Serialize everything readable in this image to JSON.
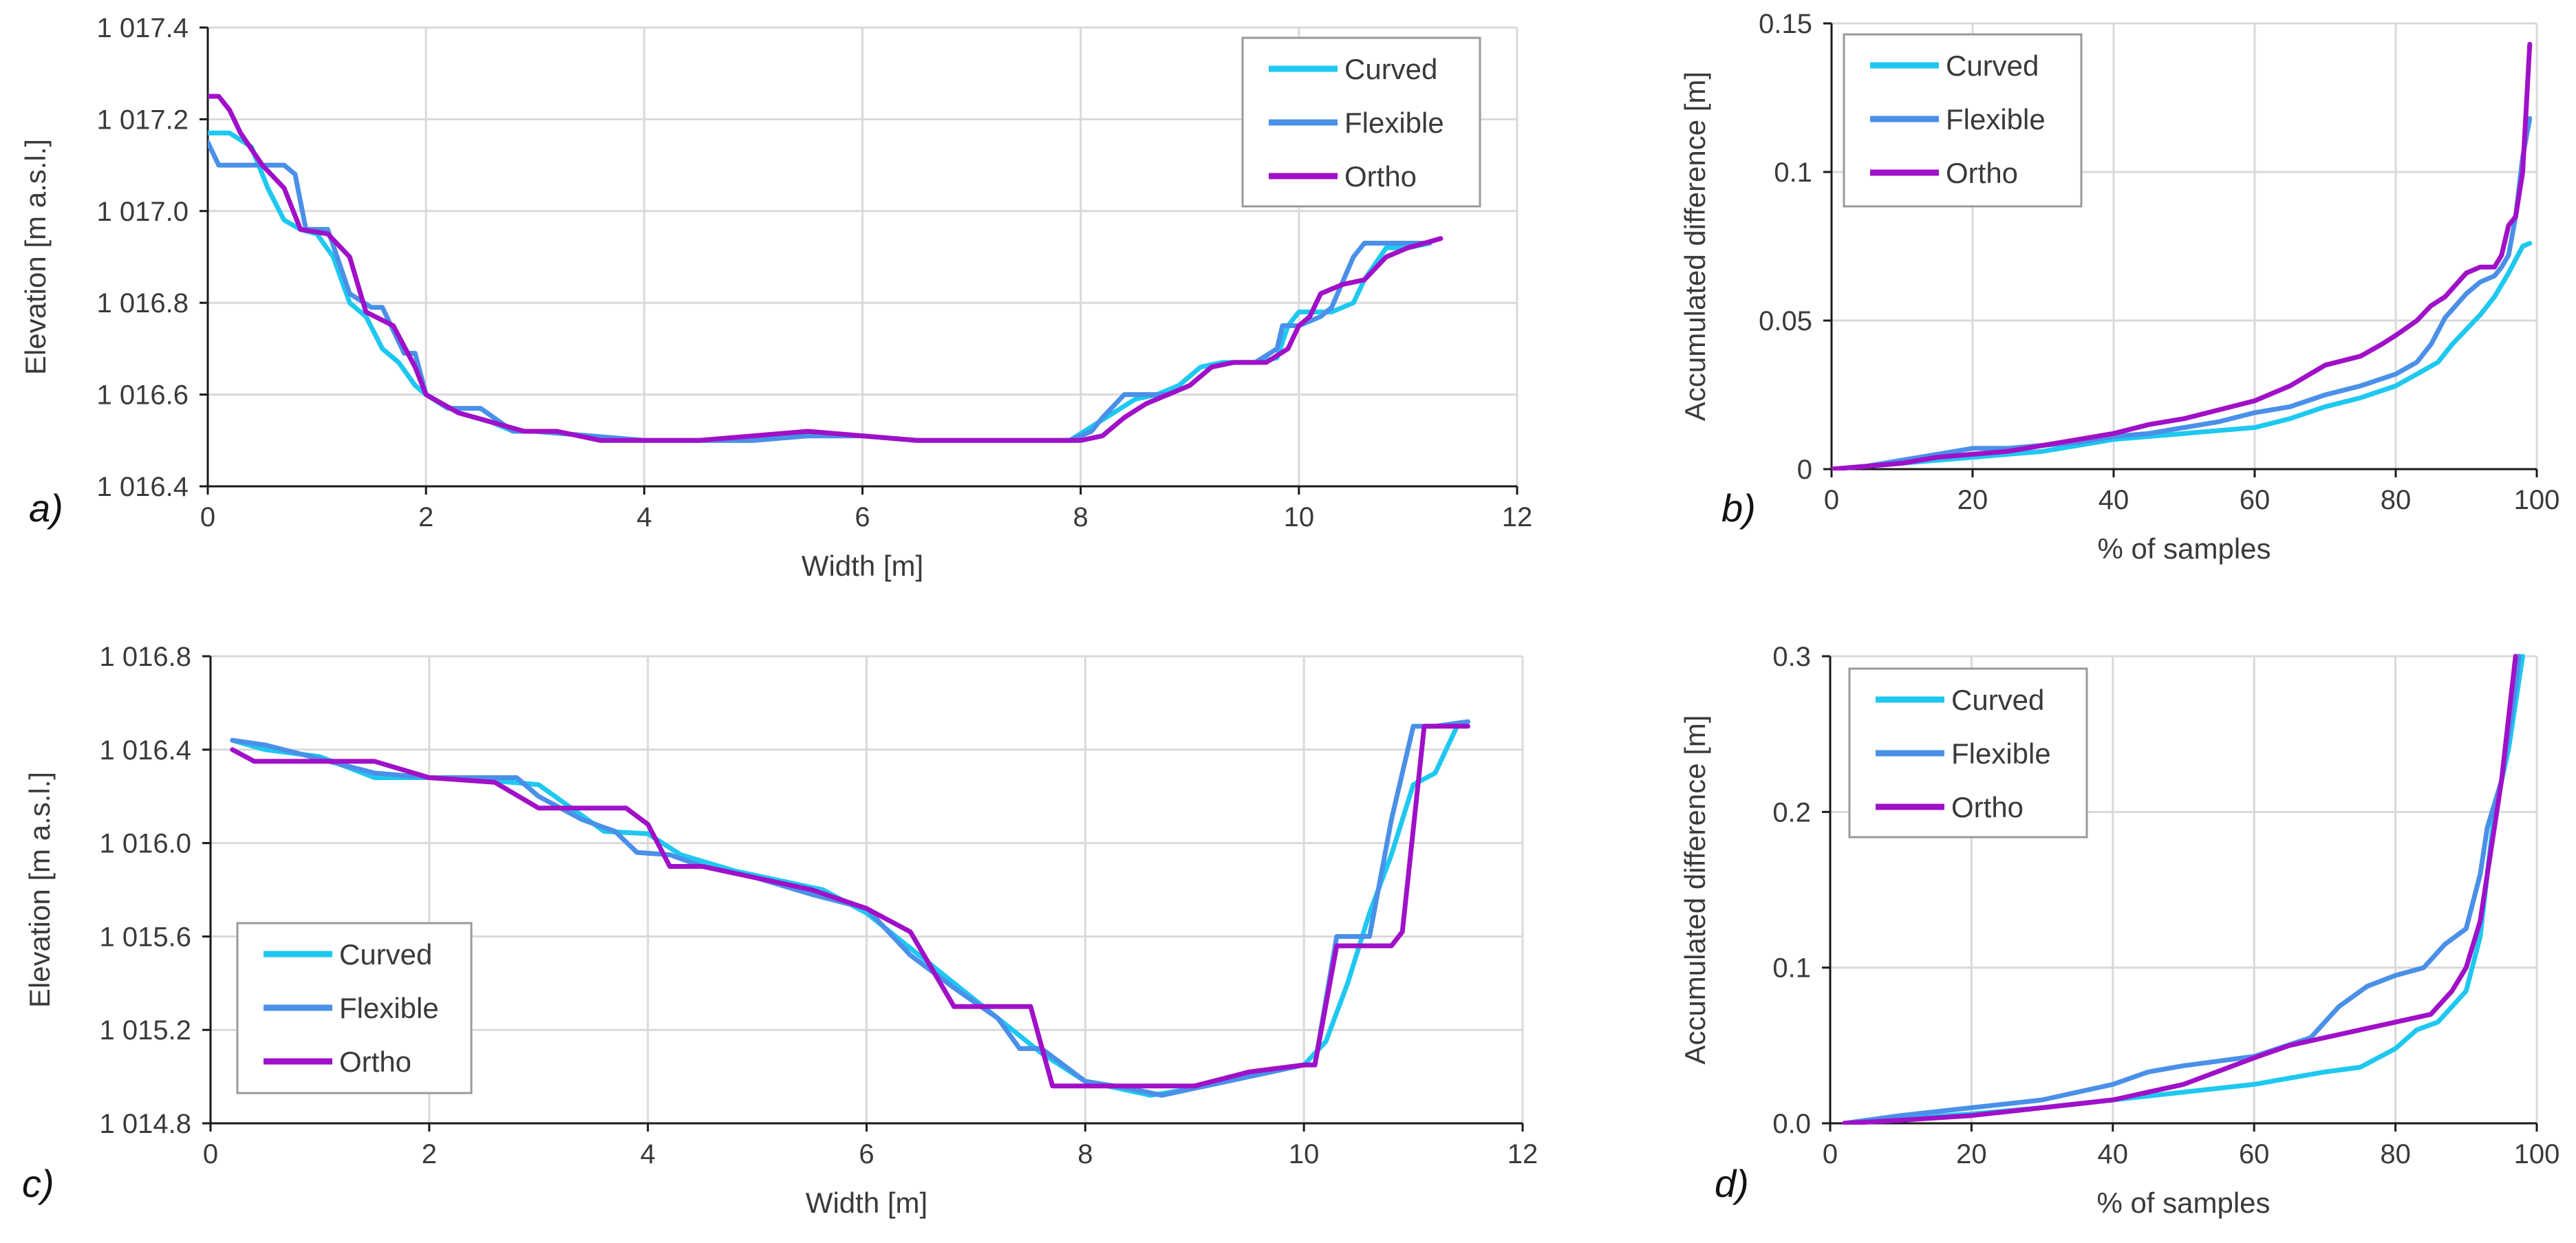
{
  "colors": {
    "Curved": "#1ec8f0",
    "Flexible": "#4a90e8",
    "Ortho": "#a010c8",
    "grid": "#d9d9d9",
    "axis": "#1a1a1a",
    "text": "#3a3a3a"
  },
  "chart_data": [
    {
      "id": "a",
      "panel_label": "a)",
      "type": "line",
      "xlabel": "Width [m]",
      "ylabel": "Elevation [m a.s.l.]",
      "xlim": [
        0,
        12
      ],
      "ylim": [
        1016.4,
        1017.4
      ],
      "xticks": [
        0,
        2,
        4,
        6,
        8,
        10,
        12
      ],
      "xtick_labels": [
        "0",
        "2",
        "4",
        "6",
        "8",
        "10",
        "12"
      ],
      "yticks": [
        1016.4,
        1016.6,
        1016.8,
        1017.0,
        1017.2,
        1017.4
      ],
      "ytick_labels": [
        "1 016.4",
        "1 016.6",
        "1 016.8",
        "1 017.0",
        "1 017.2",
        "1 017.4"
      ],
      "grid": true,
      "legend_position": "top-right",
      "series": [
        {
          "name": "Curved",
          "x": [
            0,
            0.2,
            0.4,
            0.55,
            0.7,
            0.85,
            1.0,
            1.15,
            1.3,
            1.45,
            1.6,
            1.75,
            1.9,
            2.0,
            2.3,
            2.6,
            2.8,
            3.0,
            3.5,
            4.0,
            4.5,
            5.0,
            5.5,
            6.0,
            6.5,
            7.0,
            7.5,
            7.9,
            8.1,
            8.3,
            8.5,
            8.7,
            8.9,
            9.1,
            9.3,
            9.6,
            9.8,
            9.9,
            10.0,
            10.3,
            10.5,
            10.6,
            10.8,
            11.0,
            11.2
          ],
          "y": [
            1017.17,
            1017.17,
            1017.14,
            1017.05,
            1016.98,
            1016.96,
            1016.95,
            1016.9,
            1016.8,
            1016.77,
            1016.7,
            1016.67,
            1016.62,
            1016.6,
            1016.56,
            1016.54,
            1016.52,
            1016.52,
            1016.51,
            1016.5,
            1016.5,
            1016.5,
            1016.51,
            1016.51,
            1016.5,
            1016.5,
            1016.5,
            1016.5,
            1016.53,
            1016.56,
            1016.59,
            1016.6,
            1016.62,
            1016.66,
            1016.67,
            1016.67,
            1016.68,
            1016.75,
            1016.78,
            1016.78,
            1016.8,
            1016.85,
            1016.92,
            1016.92,
            1016.93
          ]
        },
        {
          "name": "Flexible",
          "x": [
            0,
            0.1,
            0.4,
            0.7,
            0.8,
            0.9,
            1.1,
            1.3,
            1.5,
            1.6,
            1.8,
            1.9,
            2.0,
            2.2,
            2.5,
            2.8,
            3.0,
            3.5,
            4.0,
            4.5,
            5.0,
            5.5,
            6.0,
            6.5,
            7.0,
            7.5,
            7.9,
            8.1,
            8.2,
            8.4,
            8.6,
            8.8,
            9.0,
            9.2,
            9.4,
            9.6,
            9.8,
            9.85,
            10.0,
            10.2,
            10.3,
            10.5,
            10.6,
            10.7,
            11.0,
            11.2
          ],
          "y": [
            1017.15,
            1017.1,
            1017.1,
            1017.1,
            1017.08,
            1016.96,
            1016.96,
            1016.82,
            1016.79,
            1016.79,
            1016.69,
            1016.69,
            1016.6,
            1016.57,
            1016.57,
            1016.52,
            1016.52,
            1016.51,
            1016.5,
            1016.5,
            1016.5,
            1016.51,
            1016.51,
            1016.5,
            1016.5,
            1016.5,
            1016.5,
            1016.52,
            1016.55,
            1016.6,
            1016.6,
            1016.6,
            1016.62,
            1016.66,
            1016.67,
            1016.67,
            1016.7,
            1016.75,
            1016.75,
            1016.77,
            1016.79,
            1016.9,
            1016.93,
            1016.93,
            1016.93,
            1016.93
          ]
        },
        {
          "name": "Ortho",
          "x": [
            0,
            0.1,
            0.2,
            0.3,
            0.5,
            0.7,
            0.85,
            1.1,
            1.3,
            1.45,
            1.7,
            1.9,
            2.0,
            2.3,
            2.6,
            2.9,
            3.2,
            3.6,
            4.0,
            4.5,
            5.0,
            5.5,
            6.0,
            6.5,
            7.0,
            7.5,
            7.9,
            8.0,
            8.2,
            8.4,
            8.6,
            8.8,
            9.0,
            9.2,
            9.4,
            9.7,
            9.9,
            10.0,
            10.1,
            10.2,
            10.4,
            10.6,
            10.8,
            11.0,
            11.3
          ],
          "y": [
            1017.25,
            1017.25,
            1017.22,
            1017.17,
            1017.1,
            1017.05,
            1016.96,
            1016.95,
            1016.9,
            1016.78,
            1016.75,
            1016.66,
            1016.6,
            1016.56,
            1016.54,
            1016.52,
            1016.52,
            1016.5,
            1016.5,
            1016.5,
            1016.51,
            1016.52,
            1016.51,
            1016.5,
            1016.5,
            1016.5,
            1016.5,
            1016.5,
            1016.51,
            1016.55,
            1016.58,
            1016.6,
            1016.62,
            1016.66,
            1016.67,
            1016.67,
            1016.7,
            1016.75,
            1016.77,
            1016.82,
            1016.84,
            1016.85,
            1016.9,
            1016.92,
            1016.94
          ]
        }
      ]
    },
    {
      "id": "b",
      "panel_label": "b)",
      "type": "line",
      "xlabel": "% of samples",
      "ylabel": "Accumulated difference [m]",
      "xlim": [
        0,
        100
      ],
      "ylim": [
        0,
        0.15
      ],
      "xticks": [
        0,
        20,
        40,
        60,
        80,
        100
      ],
      "xtick_labels": [
        "0",
        "20",
        "40",
        "60",
        "80",
        "100"
      ],
      "yticks": [
        0,
        0.05,
        0.1,
        0.15
      ],
      "ytick_labels": [
        "0",
        "0.05",
        "0.1",
        "0.15"
      ],
      "grid": true,
      "legend_position": "top-left",
      "series": [
        {
          "name": "Curved",
          "x": [
            0,
            5,
            10,
            15,
            20,
            25,
            30,
            35,
            40,
            45,
            50,
            55,
            60,
            65,
            70,
            75,
            80,
            83,
            86,
            88,
            90,
            92,
            94,
            96,
            98,
            99
          ],
          "y": [
            0,
            0.001,
            0.002,
            0.003,
            0.004,
            0.005,
            0.006,
            0.008,
            0.01,
            0.011,
            0.012,
            0.013,
            0.014,
            0.017,
            0.021,
            0.024,
            0.028,
            0.032,
            0.036,
            0.042,
            0.047,
            0.052,
            0.058,
            0.066,
            0.075,
            0.076
          ]
        },
        {
          "name": "Flexible",
          "x": [
            0,
            5,
            10,
            15,
            20,
            25,
            30,
            35,
            40,
            45,
            50,
            55,
            60,
            65,
            70,
            75,
            80,
            83,
            85,
            87,
            90,
            92,
            94,
            95,
            96,
            97,
            98,
            99
          ],
          "y": [
            0,
            0.001,
            0.003,
            0.005,
            0.007,
            0.007,
            0.008,
            0.009,
            0.011,
            0.012,
            0.014,
            0.016,
            0.019,
            0.021,
            0.025,
            0.028,
            0.032,
            0.036,
            0.042,
            0.051,
            0.059,
            0.063,
            0.065,
            0.068,
            0.072,
            0.085,
            0.105,
            0.118
          ]
        },
        {
          "name": "Ortho",
          "x": [
            0,
            5,
            10,
            15,
            20,
            25,
            30,
            35,
            40,
            45,
            50,
            55,
            60,
            65,
            70,
            75,
            78,
            80,
            83,
            85,
            87,
            90,
            92,
            94,
            95,
            96,
            97,
            98,
            99
          ],
          "y": [
            0,
            0.001,
            0.002,
            0.004,
            0.005,
            0.006,
            0.008,
            0.01,
            0.012,
            0.015,
            0.017,
            0.02,
            0.023,
            0.028,
            0.035,
            0.038,
            0.042,
            0.045,
            0.05,
            0.055,
            0.058,
            0.066,
            0.068,
            0.068,
            0.072,
            0.082,
            0.085,
            0.1,
            0.143
          ]
        }
      ]
    },
    {
      "id": "c",
      "panel_label": "c)",
      "type": "line",
      "xlabel": "Width [m]",
      "ylabel": "Elevation [m a.s.l.]",
      "xlim": [
        0,
        12
      ],
      "ylim": [
        1014.8,
        1016.8
      ],
      "xticks": [
        0,
        2,
        4,
        6,
        8,
        10,
        12
      ],
      "xtick_labels": [
        "0",
        "2",
        "4",
        "6",
        "8",
        "10",
        "12"
      ],
      "yticks": [
        1014.8,
        1015.2,
        1015.6,
        1016.0,
        1016.4,
        1016.8
      ],
      "ytick_labels": [
        "1 014.8",
        "1 015.2",
        "1 015.6",
        "1 016.0",
        "1 016.4",
        "1 016.8"
      ],
      "grid": true,
      "legend_position": "bottom-left",
      "series": [
        {
          "name": "Curved",
          "x": [
            0.2,
            0.5,
            1.0,
            1.5,
            2.0,
            2.5,
            3.0,
            3.3,
            3.6,
            4.0,
            4.3,
            4.8,
            5.2,
            5.6,
            6.0,
            6.4,
            6.8,
            7.2,
            7.6,
            8.0,
            8.3,
            8.6,
            9.0,
            9.5,
            10.0,
            10.2,
            10.4,
            10.6,
            10.8,
            11.0,
            11.2,
            11.4,
            11.5
          ],
          "y": [
            1016.44,
            1016.4,
            1016.37,
            1016.28,
            1016.28,
            1016.27,
            1016.25,
            1016.15,
            1016.05,
            1016.04,
            1015.95,
            1015.88,
            1015.84,
            1015.8,
            1015.7,
            1015.55,
            1015.4,
            1015.25,
            1015.1,
            1014.98,
            1014.95,
            1014.92,
            1014.95,
            1015.0,
            1015.05,
            1015.15,
            1015.4,
            1015.7,
            1015.95,
            1016.25,
            1016.3,
            1016.5,
            1016.52
          ]
        },
        {
          "name": "Flexible",
          "x": [
            0.2,
            0.5,
            1.0,
            1.5,
            2.0,
            2.5,
            2.8,
            3.0,
            3.4,
            3.7,
            3.9,
            4.2,
            4.5,
            5.0,
            5.5,
            6.0,
            6.4,
            6.8,
            7.2,
            7.4,
            7.6,
            8.0,
            8.4,
            8.7,
            9.0,
            9.5,
            10.0,
            10.1,
            10.3,
            10.6,
            10.8,
            11.0,
            11.2,
            11.5
          ],
          "y": [
            1016.44,
            1016.42,
            1016.36,
            1016.3,
            1016.28,
            1016.28,
            1016.28,
            1016.2,
            1016.1,
            1016.05,
            1015.96,
            1015.95,
            1015.9,
            1015.85,
            1015.78,
            1015.72,
            1015.52,
            1015.38,
            1015.25,
            1015.12,
            1015.12,
            1014.98,
            1014.95,
            1014.92,
            1014.95,
            1015.0,
            1015.05,
            1015.05,
            1015.6,
            1015.6,
            1016.1,
            1016.5,
            1016.5,
            1016.52
          ]
        },
        {
          "name": "Ortho",
          "x": [
            0.2,
            0.4,
            0.8,
            1.2,
            1.5,
            2.0,
            2.6,
            3.0,
            3.4,
            3.8,
            4.0,
            4.2,
            4.5,
            5.0,
            5.5,
            6.0,
            6.4,
            6.8,
            7.2,
            7.5,
            7.7,
            8.0,
            8.5,
            9.0,
            9.5,
            10.0,
            10.1,
            10.3,
            10.6,
            10.8,
            10.9,
            11.1,
            11.3,
            11.5
          ],
          "y": [
            1016.4,
            1016.35,
            1016.35,
            1016.35,
            1016.35,
            1016.28,
            1016.26,
            1016.15,
            1016.15,
            1016.15,
            1016.08,
            1015.9,
            1015.9,
            1015.85,
            1015.8,
            1015.72,
            1015.62,
            1015.3,
            1015.3,
            1015.3,
            1014.96,
            1014.96,
            1014.96,
            1014.96,
            1015.02,
            1015.05,
            1015.05,
            1015.56,
            1015.56,
            1015.56,
            1015.62,
            1016.5,
            1016.5,
            1016.5
          ]
        }
      ]
    },
    {
      "id": "d",
      "panel_label": "d)",
      "type": "line",
      "xlabel": "% of samples",
      "ylabel": "Accumulated difference [m]",
      "xlim": [
        0,
        100
      ],
      "ylim": [
        0,
        0.3
      ],
      "xticks": [
        0,
        20,
        40,
        60,
        80,
        100
      ],
      "xtick_labels": [
        "0",
        "20",
        "40",
        "60",
        "80",
        "100"
      ],
      "yticks": [
        0,
        0.1,
        0.2,
        0.3
      ],
      "ytick_labels": [
        "0.0",
        "0.1",
        "0.2",
        "0.3"
      ],
      "grid": true,
      "legend_position": "top-left",
      "series": [
        {
          "name": "Curved",
          "x": [
            2,
            10,
            20,
            30,
            40,
            50,
            60,
            70,
            75,
            80,
            83,
            86,
            88,
            90,
            92,
            93,
            94,
            95,
            96,
            97,
            98
          ],
          "y": [
            0,
            0.003,
            0.006,
            0.01,
            0.015,
            0.02,
            0.025,
            0.033,
            0.036,
            0.048,
            0.06,
            0.065,
            0.075,
            0.085,
            0.12,
            0.16,
            0.2,
            0.22,
            0.24,
            0.27,
            0.3
          ]
        },
        {
          "name": "Flexible",
          "x": [
            2,
            10,
            20,
            30,
            40,
            45,
            50,
            60,
            68,
            72,
            76,
            80,
            84,
            87,
            90,
            92,
            93,
            95,
            96,
            97,
            97.5
          ],
          "y": [
            0,
            0.005,
            0.01,
            0.015,
            0.025,
            0.033,
            0.037,
            0.043,
            0.055,
            0.075,
            0.088,
            0.095,
            0.1,
            0.115,
            0.125,
            0.16,
            0.19,
            0.22,
            0.25,
            0.28,
            0.3
          ]
        },
        {
          "name": "Ortho",
          "x": [
            2,
            10,
            20,
            30,
            40,
            45,
            50,
            60,
            65,
            70,
            75,
            80,
            85,
            88,
            90,
            92,
            93,
            94,
            95,
            96,
            97
          ],
          "y": [
            0,
            0.002,
            0.005,
            0.01,
            0.015,
            0.02,
            0.025,
            0.042,
            0.05,
            0.055,
            0.06,
            0.065,
            0.07,
            0.085,
            0.1,
            0.13,
            0.16,
            0.19,
            0.22,
            0.26,
            0.3
          ]
        }
      ]
    }
  ]
}
